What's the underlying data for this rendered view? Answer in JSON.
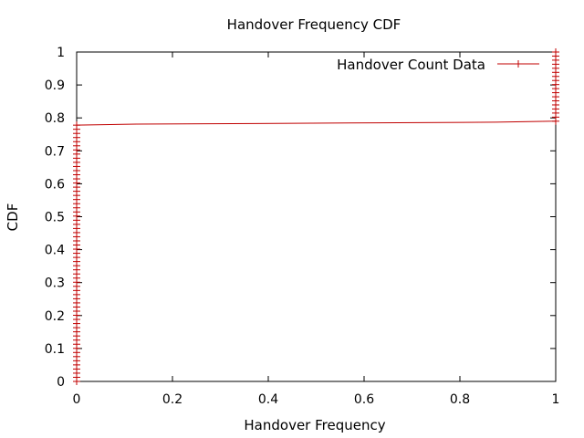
{
  "chart_data": {
    "type": "line",
    "title": "Handover Frequency CDF",
    "xlabel": "Handover Frequency",
    "ylabel": "CDF",
    "xlim": [
      0,
      1
    ],
    "ylim": [
      0,
      1
    ],
    "xticks": [
      0,
      0.2,
      0.4,
      0.6,
      0.8,
      1
    ],
    "xtick_labels": [
      "0",
      "0.2",
      "0.4",
      "0.6",
      "0.8",
      "1"
    ],
    "yticks": [
      0,
      0.1,
      0.2,
      0.3,
      0.4,
      0.5,
      0.6,
      0.7,
      0.8,
      0.9,
      1
    ],
    "ytick_labels": [
      "0",
      "0.1",
      "0.2",
      "0.3",
      "0.4",
      "0.5",
      "0.6",
      "0.7",
      "0.8",
      "0.9",
      "1"
    ],
    "grid": false,
    "legend_position": "top-right",
    "series": [
      {
        "name": "Handover Count Data",
        "color": "#c00000",
        "marker": "plus",
        "x": [
          0,
          0,
          0.125,
          0.375,
          0.625,
          0.875,
          1,
          1
        ],
        "y": [
          0,
          0.778,
          0.781,
          0.783,
          0.785,
          0.787,
          0.79,
          1
        ],
        "marker_columns": [
          {
            "x": 0,
            "y_from": 0,
            "y_to": 0.778
          },
          {
            "x": 1,
            "y_from": 0.79,
            "y_to": 1
          }
        ],
        "marker_count": 60
      }
    ]
  }
}
